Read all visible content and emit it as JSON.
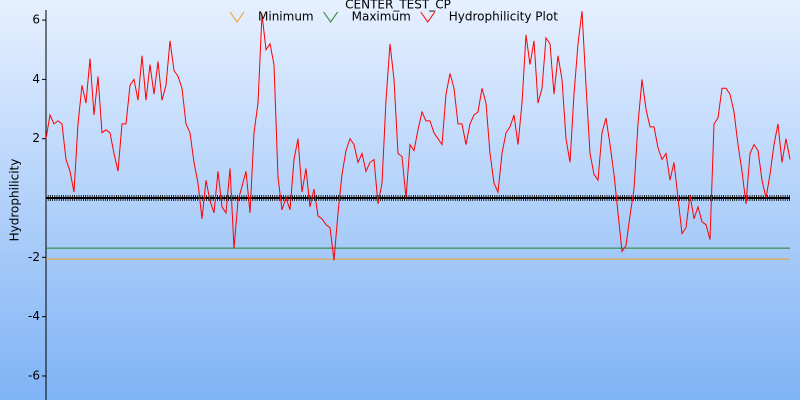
{
  "chart_data": {
    "type": "line",
    "title": "CENTER_TEST_CP",
    "y_label": "Hydrophilicity",
    "ylim": [
      -6.81,
      6.34
    ],
    "yticks": [
      -6,
      -4,
      -2,
      2,
      4,
      6
    ],
    "reference_lines": [
      {
        "name": "Minimum",
        "color": "#f0a020",
        "value": -2.06
      },
      {
        "name": "Maximum",
        "color": "#208020",
        "value": -1.69
      }
    ],
    "series": [
      {
        "name": "Hydrophilicity Plot",
        "color": "#ff0000",
        "values": [
          2,
          2.8,
          2.5,
          2.6,
          2.5,
          1.3,
          0.9,
          0.2,
          2.5,
          3.8,
          3.2,
          4.7,
          2.8,
          4.1,
          2.2,
          2.3,
          2.2,
          1.5,
          0.9,
          2.5,
          2.5,
          3.8,
          4,
          3.3,
          4.8,
          3.3,
          4.5,
          3.5,
          4.6,
          3.3,
          3.8,
          5.3,
          4.3,
          4.1,
          3.7,
          2.5,
          2.2,
          1.2,
          0.5,
          -0.7,
          0.6,
          -0.1,
          -0.5,
          0.9,
          -0.3,
          -0.5,
          1,
          -1.7,
          -0.1,
          0.4,
          0.9,
          -0.5,
          2.2,
          3.2,
          6.2,
          5,
          5.2,
          4.5,
          0.7,
          -0.4,
          0,
          -0.4,
          1.3,
          2,
          0.2,
          1,
          -0.3,
          0.3,
          -0.6,
          -0.7,
          -0.9,
          -1,
          -2.1,
          -0.5,
          0.8,
          1.6,
          2,
          1.8,
          1.2,
          1.5,
          0.9,
          1.2,
          1.3,
          -0.2,
          0.5,
          3.3,
          5.2,
          4,
          1.5,
          1.4,
          0,
          1.8,
          1.6,
          2.3,
          2.9,
          2.6,
          2.6,
          2.2,
          2,
          1.8,
          3.5,
          4.2,
          3.7,
          2.5,
          2.5,
          1.8,
          2.5,
          2.8,
          2.9,
          3.7,
          3.2,
          1.5,
          0.5,
          0.2,
          1.5,
          2.2,
          2.4,
          2.8,
          1.8,
          3.2,
          5.5,
          4.5,
          5.3,
          3.2,
          3.7,
          5.4,
          5.2,
          3.5,
          4.8,
          4,
          2,
          1.2,
          3.5,
          5.2,
          6.3,
          3.8,
          1.5,
          0.8,
          0.6,
          2.2,
          2.7,
          1.8,
          0.8,
          -0.5,
          -1.8,
          -1.6,
          -0.6,
          0.3,
          2.5,
          4,
          3,
          2.4,
          2.4,
          1.7,
          1.3,
          1.5,
          0.6,
          1.2,
          0,
          -1.2,
          -1,
          0.1,
          -0.7,
          -0.3,
          -0.8,
          -0.9,
          -1.4,
          2.5,
          2.7,
          3.7,
          3.7,
          3.5,
          2.9,
          1.8,
          0.9,
          -0.2,
          1.5,
          1.8,
          1.6,
          0.6,
          0,
          0.8,
          1.8,
          2.5,
          1.2,
          2,
          1.3
        ]
      }
    ]
  }
}
